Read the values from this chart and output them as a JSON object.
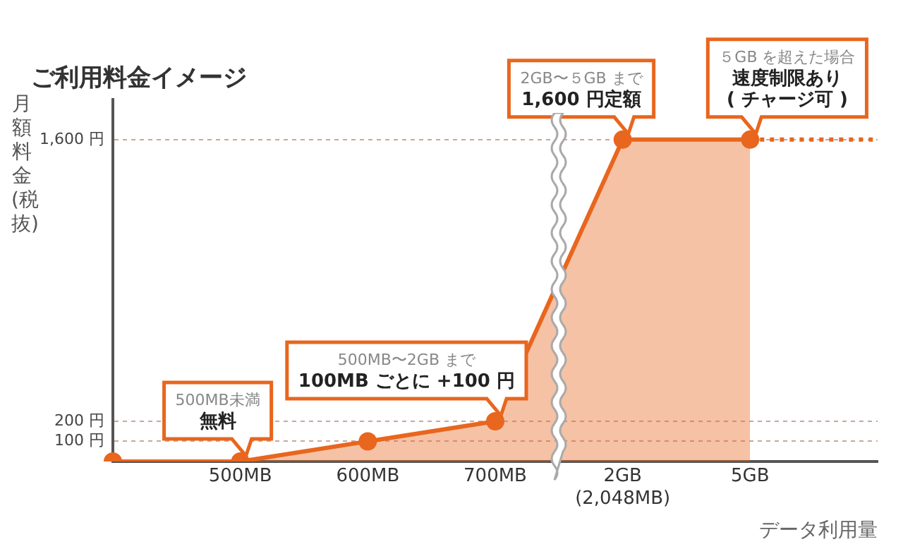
{
  "chart_data": {
    "type": "area",
    "title": "ご利用料金イメージ",
    "ylabel": "月額料金 (税抜)",
    "xlabel": "データ利用量",
    "categories": [
      null,
      "500MB",
      "600MB",
      "700MB",
      "2GB\n(2,048MB)",
      "5GB",
      null
    ],
    "series": [
      {
        "type": "area",
        "color": "#e8661e",
        "values": [
          0,
          0,
          100,
          200,
          1600,
          1600,
          null
        ]
      },
      {
        "type": "line",
        "color": "#e8661e",
        "line_style": "dotted",
        "values": [
          null,
          null,
          null,
          null,
          null,
          1600,
          1600
        ]
      }
    ],
    "ylim": [
      0,
      1800
    ],
    "yticks": [
      {
        "value": 100,
        "label": "100 円"
      },
      {
        "value": 200,
        "label": "200 円"
      },
      {
        "value": 1600,
        "label": "1,600 円"
      }
    ],
    "grid": "y",
    "marker": "circle",
    "legend": false,
    "annotations": [
      "500MB未満",
      {
        "text": "無料",
        "x": "500MB",
        "y": 0
      },
      "500MB〜2GB まで",
      {
        "text": "100MB ごとに +100 円",
        "x": "700MB",
        "y": 200
      },
      "2GB〜５GB まで",
      {
        "text": "1,600 円定額",
        "x": "2GB\n(2,048MB)",
        "y": 1600
      },
      "５GB を超えた場合",
      "速度制限あり",
      {
        "text": "( チャージ可 )",
        "x": "5GB",
        "y": 1600
      }
    ]
  }
}
